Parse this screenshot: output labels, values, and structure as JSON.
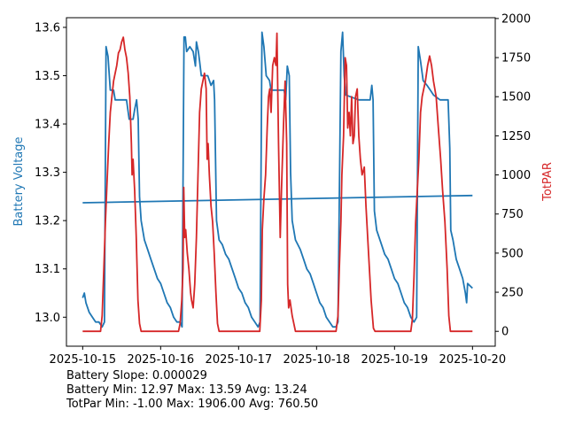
{
  "chart_data": {
    "type": "line",
    "title": "",
    "xlabel": "",
    "ylabel": "Battery Voltage",
    "y2label": "TotPAR",
    "x_ticks": [
      "2025-10-15",
      "2025-10-16",
      "2025-10-17",
      "2025-10-18",
      "2025-10-19",
      "2025-10-20"
    ],
    "x_unit": "hours since 2025-10-15 00:00",
    "xlim": [
      -5,
      127
    ],
    "ylim": [
      12.94,
      13.62
    ],
    "y_ticks": [
      "13.0",
      "13.1",
      "13.2",
      "13.3",
      "13.4",
      "13.5",
      "13.6"
    ],
    "y2lim": [
      -95,
      2005
    ],
    "y2_ticks": [
      "0",
      "250",
      "500",
      "750",
      "1000",
      "1250",
      "1500",
      "1750",
      "2000"
    ],
    "colors": {
      "battery": "#1f77b4",
      "par": "#d62728"
    },
    "series": [
      {
        "name": "Battery Voltage",
        "axis": "left",
        "points": [
          [
            0,
            13.04
          ],
          [
            0.5,
            13.05
          ],
          [
            1,
            13.03
          ],
          [
            2,
            13.01
          ],
          [
            3,
            13.0
          ],
          [
            4,
            12.99
          ],
          [
            5,
            12.99
          ],
          [
            6,
            12.98
          ],
          [
            6.7,
            12.99
          ],
          [
            7.2,
            13.56
          ],
          [
            7.8,
            13.54
          ],
          [
            8.5,
            13.47
          ],
          [
            9.5,
            13.47
          ],
          [
            10,
            13.45
          ],
          [
            13.5,
            13.45
          ],
          [
            14.3,
            13.41
          ],
          [
            15.5,
            13.41
          ],
          [
            16,
            13.43
          ],
          [
            16.6,
            13.45
          ],
          [
            17.1,
            13.41
          ],
          [
            17.5,
            13.25
          ],
          [
            18,
            13.2
          ],
          [
            19,
            13.16
          ],
          [
            20,
            13.14
          ],
          [
            21,
            13.12
          ],
          [
            22,
            13.1
          ],
          [
            23,
            13.08
          ],
          [
            24,
            13.07
          ],
          [
            25,
            13.05
          ],
          [
            26,
            13.03
          ],
          [
            27,
            13.02
          ],
          [
            28,
            13.0
          ],
          [
            29,
            12.99
          ],
          [
            30,
            12.99
          ],
          [
            30.6,
            12.98
          ],
          [
            31.2,
            13.58
          ],
          [
            31.6,
            13.58
          ],
          [
            32,
            13.55
          ],
          [
            33,
            13.56
          ],
          [
            34,
            13.55
          ],
          [
            34.7,
            13.52
          ],
          [
            35,
            13.57
          ],
          [
            35.6,
            13.55
          ],
          [
            36,
            13.53
          ],
          [
            36.5,
            13.5
          ],
          [
            38.5,
            13.5
          ],
          [
            39.5,
            13.48
          ],
          [
            40.3,
            13.49
          ],
          [
            40.6,
            13.45
          ],
          [
            41.2,
            13.2
          ],
          [
            42,
            13.16
          ],
          [
            43,
            13.15
          ],
          [
            44,
            13.13
          ],
          [
            45,
            13.12
          ],
          [
            46,
            13.1
          ],
          [
            47,
            13.08
          ],
          [
            48,
            13.06
          ],
          [
            49,
            13.05
          ],
          [
            50,
            13.03
          ],
          [
            51,
            13.02
          ],
          [
            52,
            13.0
          ],
          [
            53,
            12.99
          ],
          [
            54,
            12.98
          ],
          [
            54.6,
            12.99
          ],
          [
            55.2,
            13.59
          ],
          [
            55.8,
            13.56
          ],
          [
            56.5,
            13.5
          ],
          [
            57.5,
            13.49
          ],
          [
            58,
            13.47
          ],
          [
            62,
            13.47
          ],
          [
            62.5,
            13.45
          ],
          [
            63,
            13.52
          ],
          [
            63.6,
            13.5
          ],
          [
            64,
            13.3
          ],
          [
            64.5,
            13.2
          ],
          [
            65.5,
            13.16
          ],
          [
            67,
            13.14
          ],
          [
            68,
            13.12
          ],
          [
            69,
            13.1
          ],
          [
            70,
            13.09
          ],
          [
            71,
            13.07
          ],
          [
            72,
            13.05
          ],
          [
            73,
            13.03
          ],
          [
            74,
            13.02
          ],
          [
            75,
            13.0
          ],
          [
            76,
            12.99
          ],
          [
            77,
            12.98
          ],
          [
            78,
            12.98
          ],
          [
            78.6,
            12.99
          ],
          [
            79.5,
            13.55
          ],
          [
            80,
            13.59
          ],
          [
            80.5,
            13.5
          ],
          [
            81,
            13.46
          ],
          [
            85,
            13.45
          ],
          [
            88.5,
            13.45
          ],
          [
            89,
            13.48
          ],
          [
            89.4,
            13.45
          ],
          [
            89.8,
            13.22
          ],
          [
            90.5,
            13.18
          ],
          [
            92,
            13.15
          ],
          [
            93,
            13.13
          ],
          [
            94,
            13.12
          ],
          [
            95,
            13.1
          ],
          [
            96,
            13.08
          ],
          [
            97,
            13.07
          ],
          [
            98,
            13.05
          ],
          [
            99,
            13.03
          ],
          [
            100,
            13.02
          ],
          [
            101,
            13.0
          ],
          [
            102,
            12.99
          ],
          [
            102.8,
            13.0
          ],
          [
            103.3,
            13.56
          ],
          [
            104,
            13.53
          ],
          [
            104.8,
            13.49
          ],
          [
            106,
            13.48
          ],
          [
            107,
            13.47
          ],
          [
            108,
            13.46
          ],
          [
            110,
            13.45
          ],
          [
            112.5,
            13.45
          ],
          [
            113,
            13.35
          ],
          [
            113.3,
            13.18
          ],
          [
            114,
            13.16
          ],
          [
            115,
            13.12
          ],
          [
            116,
            13.1
          ],
          [
            117,
            13.08
          ],
          [
            117.8,
            13.05
          ],
          [
            118.2,
            13.03
          ],
          [
            118.5,
            13.07
          ],
          [
            120,
            13.06
          ]
        ]
      },
      {
        "name": "Battery Trend",
        "axis": "left",
        "points": [
          [
            0,
            13.237
          ],
          [
            120,
            13.252
          ]
        ]
      },
      {
        "name": "TotPAR",
        "axis": "right",
        "points": [
          [
            0,
            0
          ],
          [
            5.5,
            0
          ],
          [
            6,
            100
          ],
          [
            6.5,
            400
          ],
          [
            7,
            700
          ],
          [
            7.5,
            950
          ],
          [
            8,
            1200
          ],
          [
            8.5,
            1400
          ],
          [
            9,
            1500
          ],
          [
            9.5,
            1600
          ],
          [
            10,
            1650
          ],
          [
            10.5,
            1700
          ],
          [
            11,
            1780
          ],
          [
            11.5,
            1800
          ],
          [
            12,
            1850
          ],
          [
            12.5,
            1880
          ],
          [
            13,
            1800
          ],
          [
            13.5,
            1750
          ],
          [
            14,
            1650
          ],
          [
            14.5,
            1500
          ],
          [
            15,
            1200
          ],
          [
            15.2,
            1000
          ],
          [
            15.5,
            1100
          ],
          [
            16,
            900
          ],
          [
            16.5,
            600
          ],
          [
            17,
            200
          ],
          [
            17.5,
            50
          ],
          [
            18,
            0
          ],
          [
            29.5,
            0
          ],
          [
            30,
            50
          ],
          [
            30.5,
            200
          ],
          [
            30.9,
            400
          ],
          [
            31.1,
            920
          ],
          [
            31.4,
            600
          ],
          [
            31.7,
            650
          ],
          [
            32.2,
            500
          ],
          [
            32.7,
            400
          ],
          [
            33.2,
            250
          ],
          [
            33.5,
            200
          ],
          [
            34,
            150
          ],
          [
            34.5,
            300
          ],
          [
            35,
            600
          ],
          [
            35.5,
            1000
          ],
          [
            36,
            1400
          ],
          [
            36.5,
            1550
          ],
          [
            37,
            1600
          ],
          [
            37.5,
            1650
          ],
          [
            38,
            1550
          ],
          [
            38.3,
            1100
          ],
          [
            38.6,
            1200
          ],
          [
            39,
            1000
          ],
          [
            39.5,
            800
          ],
          [
            40,
            700
          ],
          [
            40.5,
            500
          ],
          [
            41,
            250
          ],
          [
            41.5,
            50
          ],
          [
            42,
            0
          ],
          [
            54.5,
            0
          ],
          [
            55,
            200
          ],
          [
            55.3,
            650
          ],
          [
            55.8,
            850
          ],
          [
            56.3,
            1000
          ],
          [
            56.8,
            1300
          ],
          [
            57.2,
            1500
          ],
          [
            57.6,
            1550
          ],
          [
            58,
            1400
          ],
          [
            58.5,
            1700
          ],
          [
            59,
            1750
          ],
          [
            59.5,
            1700
          ],
          [
            59.8,
            1906
          ],
          [
            60.3,
            1200
          ],
          [
            60.8,
            600
          ],
          [
            61.2,
            900
          ],
          [
            61.8,
            1300
          ],
          [
            62.3,
            1600
          ],
          [
            62.8,
            1200
          ],
          [
            63.1,
            300
          ],
          [
            63.4,
            150
          ],
          [
            63.8,
            200
          ],
          [
            64.5,
            100
          ],
          [
            65.5,
            0
          ],
          [
            78,
            0
          ],
          [
            78.6,
            100
          ],
          [
            79,
            400
          ],
          [
            79.5,
            700
          ],
          [
            79.8,
            1000
          ],
          [
            80.3,
            1250
          ],
          [
            80.8,
            1750
          ],
          [
            81.2,
            1700
          ],
          [
            81.6,
            1300
          ],
          [
            82,
            1400
          ],
          [
            82.4,
            1250
          ],
          [
            82.8,
            1500
          ],
          [
            83.2,
            1200
          ],
          [
            83.6,
            1250
          ],
          [
            84,
            1500
          ],
          [
            84.5,
            1550
          ],
          [
            85,
            1250
          ],
          [
            85.5,
            1100
          ],
          [
            86,
            1000
          ],
          [
            86.7,
            1050
          ],
          [
            87.2,
            800
          ],
          [
            88,
            500
          ],
          [
            88.8,
            200
          ],
          [
            89.5,
            20
          ],
          [
            90,
            0
          ],
          [
            101,
            0
          ],
          [
            101.5,
            80
          ],
          [
            102,
            350
          ],
          [
            102.5,
            700
          ],
          [
            103,
            900
          ],
          [
            103.5,
            1100
          ],
          [
            104,
            1400
          ],
          [
            104.5,
            1500
          ],
          [
            105,
            1550
          ],
          [
            105.5,
            1600
          ],
          [
            106.2,
            1700
          ],
          [
            106.8,
            1760
          ],
          [
            107.4,
            1700
          ],
          [
            108,
            1600
          ],
          [
            108.8,
            1500
          ],
          [
            109.5,
            1300
          ],
          [
            110.2,
            1100
          ],
          [
            110.8,
            900
          ],
          [
            111.5,
            700
          ],
          [
            112.2,
            400
          ],
          [
            112.7,
            100
          ],
          [
            113.2,
            0
          ],
          [
            120,
            0
          ]
        ]
      }
    ],
    "annotations": [
      "Battery Slope: 0.000029",
      "Battery Min: 12.97 Max: 13.59 Avg: 13.24",
      "TotPar Min: -1.00 Max: 1906.00 Avg: 760.50"
    ]
  }
}
